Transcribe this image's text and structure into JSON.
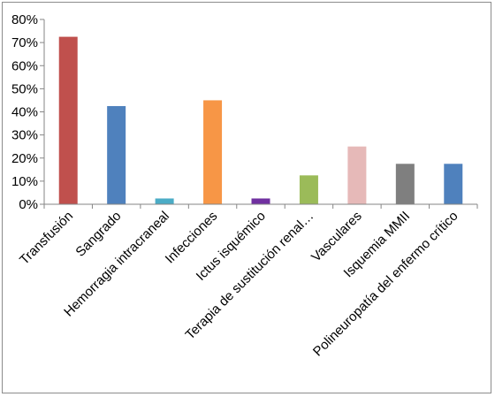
{
  "chart_data": {
    "type": "bar",
    "title": "",
    "xlabel": "",
    "ylabel": "",
    "ylim": [
      0,
      80
    ],
    "y_tick_format": "percent",
    "y_ticks": [
      "0%",
      "10%",
      "20%",
      "30%",
      "40%",
      "50%",
      "60%",
      "70%",
      "80%"
    ],
    "grid": false,
    "legend": "none",
    "categories": [
      "Transfusión",
      "Sangrado",
      "Hemorragia intracraneal",
      "Infecciones",
      "Ictus isquémico",
      "Terapia de sustitución renal…",
      "Vasculares",
      "Isquemia MMII",
      "Polineuropatía del enfermo crítico"
    ],
    "values": [
      72.5,
      42.5,
      2.5,
      45,
      2.5,
      12.5,
      25,
      17.5,
      17.5
    ],
    "colors": [
      "#c0504d",
      "#4f81bd",
      "#4bacc6",
      "#f79646",
      "#7030a0",
      "#9bbb59",
      "#e6b9b8",
      "#7f7f7f",
      "#4f81bd"
    ]
  }
}
